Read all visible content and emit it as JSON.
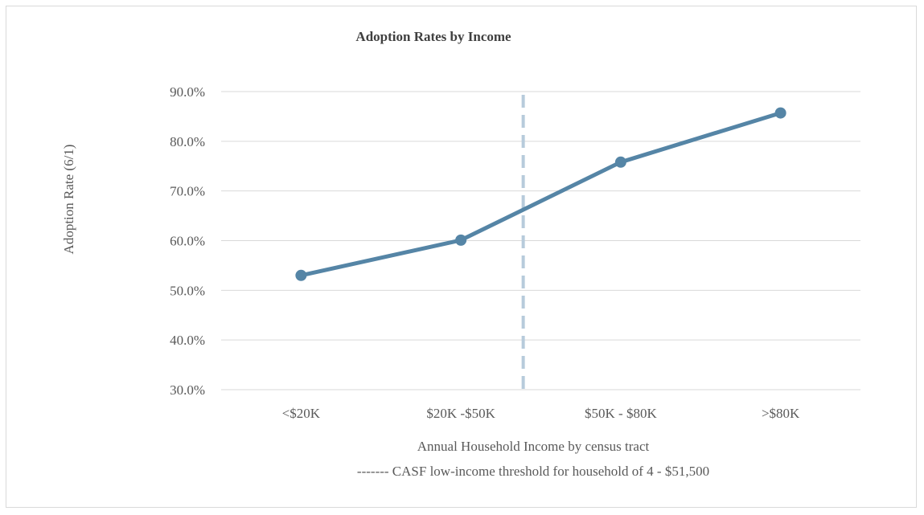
{
  "chart_data": {
    "type": "line",
    "title": "Adoption Rates by Income",
    "ylabel": "Adoption Rate (6/1)",
    "xlabel": "Annual Household Income by census tract",
    "note": "------- CASF low-income threshold for household of 4 - $51,500",
    "categories": [
      "<$20K",
      "$20K -$50K",
      "$50K - $80K",
      ">$80K"
    ],
    "series": [
      {
        "values": [
          53.0,
          60.1,
          75.8,
          85.7
        ]
      }
    ],
    "ylim": [
      30,
      90
    ],
    "yticks": [
      30,
      40,
      50,
      60,
      70,
      80,
      90
    ],
    "ytick_labels": [
      "30.0%",
      "40.0%",
      "50.0%",
      "60.0%",
      "70.0%",
      "80.0%",
      "90.0%"
    ],
    "threshold_line": {
      "style": "dashed",
      "x_position_between_categories": [
        1,
        2
      ],
      "fraction": 0.39
    },
    "grid": true,
    "legend": "none",
    "colors": {
      "series": "#5585a6",
      "threshold": "#b7cbdb",
      "grid": "#d9d9d9",
      "text": "#595959"
    }
  }
}
